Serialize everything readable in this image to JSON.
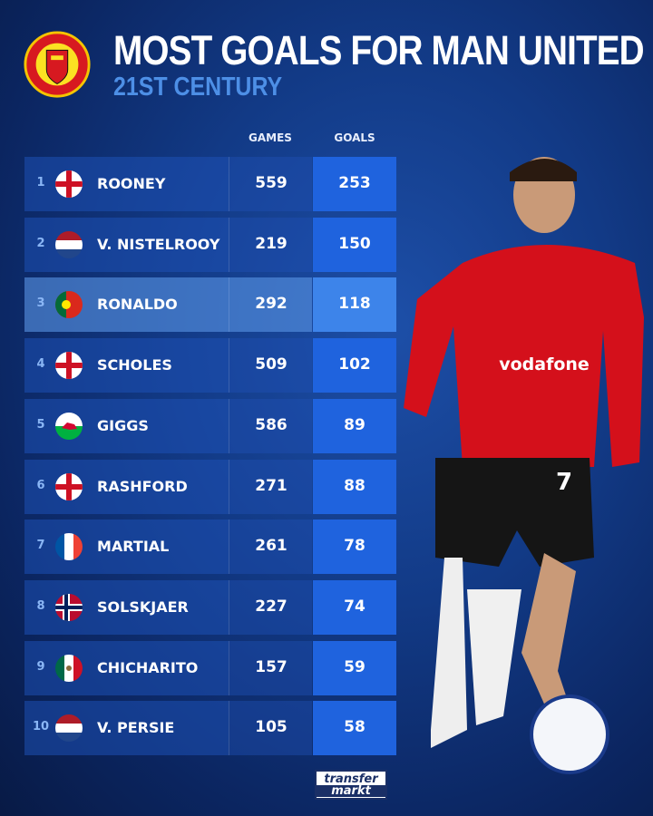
{
  "header": {
    "title": "MOST GOALS FOR MAN UNITED",
    "subtitle": "21ST CENTURY",
    "logo_text": [
      "MANCHESTER",
      "UNITED"
    ]
  },
  "columns": {
    "games": "GAMES",
    "goals": "GOALS"
  },
  "colors": {
    "goals_cell": "#1f63de",
    "highlight": "#3d84ea",
    "subtitle": "#4d8fe6"
  },
  "chart_data": {
    "type": "table",
    "title": "MOST GOALS FOR MAN UNITED",
    "subtitle": "21ST CENTURY",
    "columns": [
      "",
      "",
      "GAMES",
      "GOALS"
    ],
    "rows": [
      {
        "rank": "1",
        "flag": "england",
        "name": "ROONEY",
        "games": "559",
        "goals": "253"
      },
      {
        "rank": "2",
        "flag": "netherlands",
        "name": "V. NISTELROOY",
        "games": "219",
        "goals": "150"
      },
      {
        "rank": "3",
        "flag": "portugal",
        "name": "RONALDO",
        "games": "292",
        "goals": "118",
        "highlighted": true
      },
      {
        "rank": "4",
        "flag": "england",
        "name": "SCHOLES",
        "games": "509",
        "goals": "102"
      },
      {
        "rank": "5",
        "flag": "wales",
        "name": "GIGGS",
        "games": "586",
        "goals": "89"
      },
      {
        "rank": "6",
        "flag": "england",
        "name": "RASHFORD",
        "games": "271",
        "goals": "88"
      },
      {
        "rank": "7",
        "flag": "france",
        "name": "MARTIAL",
        "games": "261",
        "goals": "78"
      },
      {
        "rank": "8",
        "flag": "norway",
        "name": "SOLSKJAER",
        "games": "227",
        "goals": "74"
      },
      {
        "rank": "9",
        "flag": "mexico",
        "name": "CHICHARITO",
        "games": "157",
        "goals": "59"
      },
      {
        "rank": "10",
        "flag": "netherlands",
        "name": "V. PERSIE",
        "games": "105",
        "goals": "58"
      }
    ]
  },
  "player_photo": {
    "shirt_sponsor": "vodafone",
    "shirt_number": "7"
  },
  "footer": {
    "brand_top": "transfer",
    "brand_bottom": "markt"
  }
}
